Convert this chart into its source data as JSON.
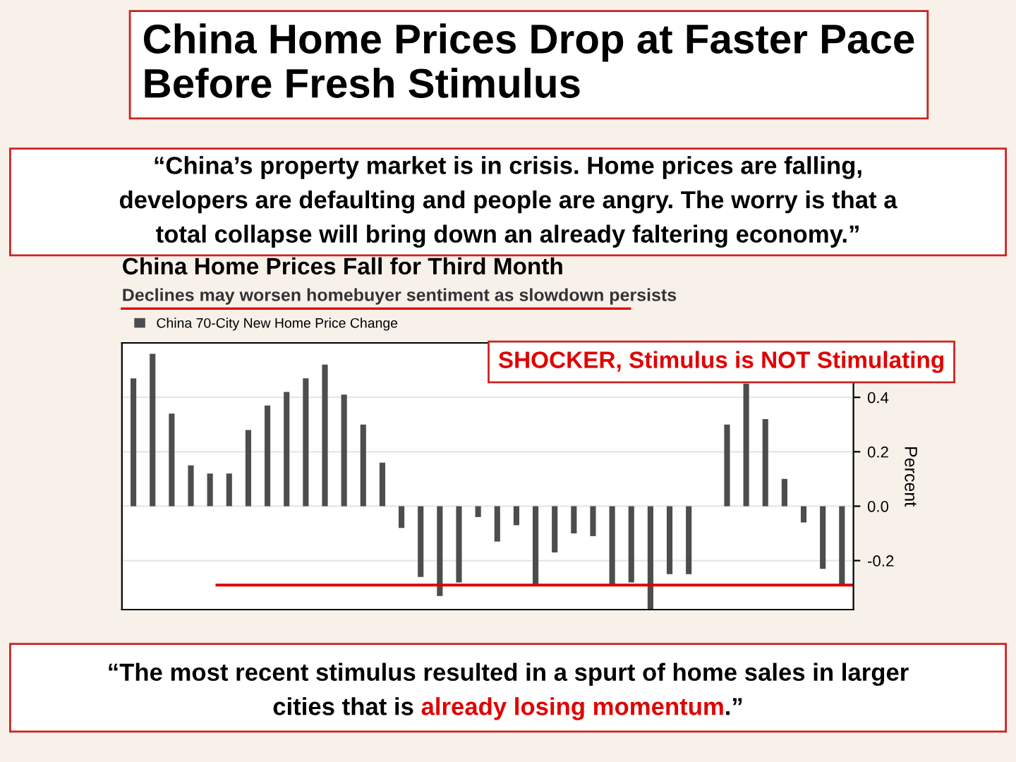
{
  "chart_data": {
    "type": "bar",
    "title": "China Home Prices Fall for Third Month",
    "subtitle": "Declines may worsen homebuyer sentiment as slowdown persists",
    "ylabel": "Percent",
    "annotations": [
      "China Home Prices Drop at Faster Pace Before Fresh Stimulus",
      "“China’s property market is in crisis. Home prices are falling,",
      "developers are defaulting and people are angry. The worry is that a",
      "total collapse will bring down an already faltering economy.”",
      "SHOCKER, Stimulus is NOT Stimulating",
      "“The most recent stimulus resulted in a spurt of home sales in larger",
      "cities that is",
      "already losing momentum",
      ".”"
    ],
    "categories": [
      null,
      null,
      null,
      null,
      null,
      null,
      null,
      null,
      null,
      null,
      null,
      null,
      null,
      null,
      null,
      null,
      null,
      null,
      null,
      null,
      null,
      null,
      null,
      null,
      null,
      null,
      null,
      null,
      null,
      null,
      null,
      null,
      null,
      null,
      null,
      null,
      null,
      null
    ],
    "series": [
      {
        "name": "China 70-City New Home Price Change",
        "color": "#4d4d4d",
        "values": [
          0.47,
          0.56,
          0.34,
          0.15,
          0.12,
          0.12,
          0.28,
          0.37,
          0.42,
          0.47,
          0.52,
          0.41,
          0.3,
          0.16,
          -0.08,
          -0.26,
          -0.33,
          -0.28,
          -0.04,
          -0.13,
          -0.07,
          -0.29,
          -0.17,
          -0.1,
          -0.11,
          -0.29,
          -0.28,
          -0.38,
          -0.25,
          -0.25,
          0.0,
          0.3,
          0.45,
          0.32,
          0.1,
          -0.06,
          -0.23,
          -0.29
        ]
      }
    ],
    "ylim": [
      -0.38,
      0.6
    ],
    "yticks": [
      {
        "value": -0.2,
        "label": "-0.2"
      },
      {
        "value": 0.0,
        "label": "0.0"
      },
      {
        "value": 0.2,
        "label": "0.2"
      },
      {
        "value": 0.4,
        "label": "0.4"
      }
    ],
    "ref_lines": [
      {
        "axis": "y",
        "value": -0.29,
        "color": "#e00000"
      }
    ],
    "grid": "y",
    "legend": "top left"
  }
}
